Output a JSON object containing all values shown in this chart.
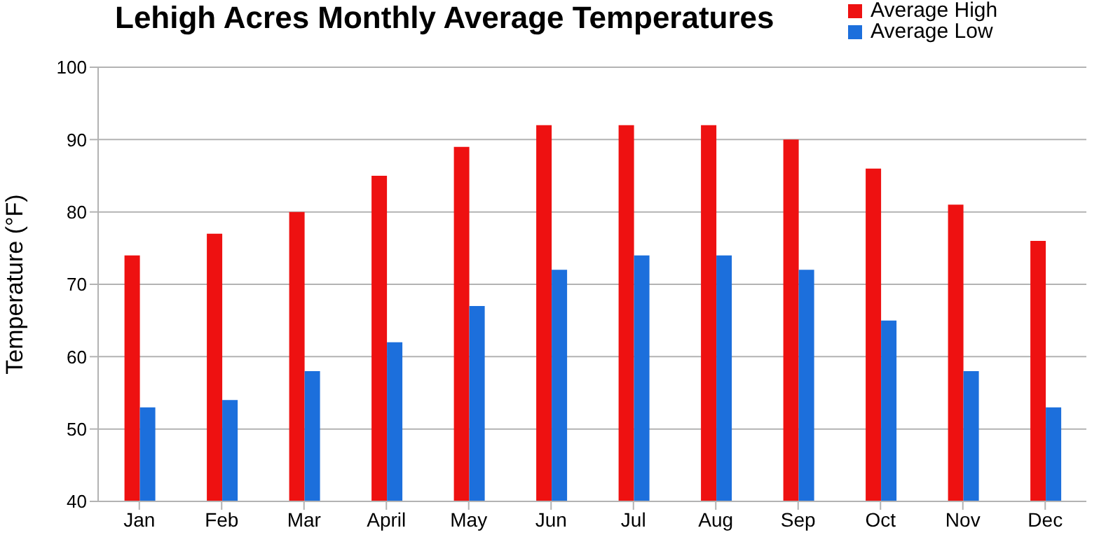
{
  "chart_data": {
    "type": "bar",
    "title": "Lehigh Acres Monthly Average Temperatures",
    "ylabel": "Temperature (°F)",
    "categories": [
      "Jan",
      "Feb",
      "Mar",
      "April",
      "May",
      "Jun",
      "Jul",
      "Aug",
      "Sep",
      "Oct",
      "Nov",
      "Dec"
    ],
    "series": [
      {
        "name": "Average High",
        "color": "#ee1111",
        "values": [
          74,
          77,
          80,
          85,
          89,
          92,
          92,
          92,
          90,
          86,
          81,
          76
        ]
      },
      {
        "name": "Average Low",
        "color": "#1c6fdc",
        "values": [
          53,
          54,
          58,
          62,
          67,
          72,
          74,
          74,
          72,
          65,
          58,
          53
        ]
      }
    ],
    "ylim": [
      40,
      100
    ],
    "yticks": [
      40,
      50,
      60,
      70,
      80,
      90,
      100
    ],
    "grid": "y",
    "legend": "top right"
  }
}
